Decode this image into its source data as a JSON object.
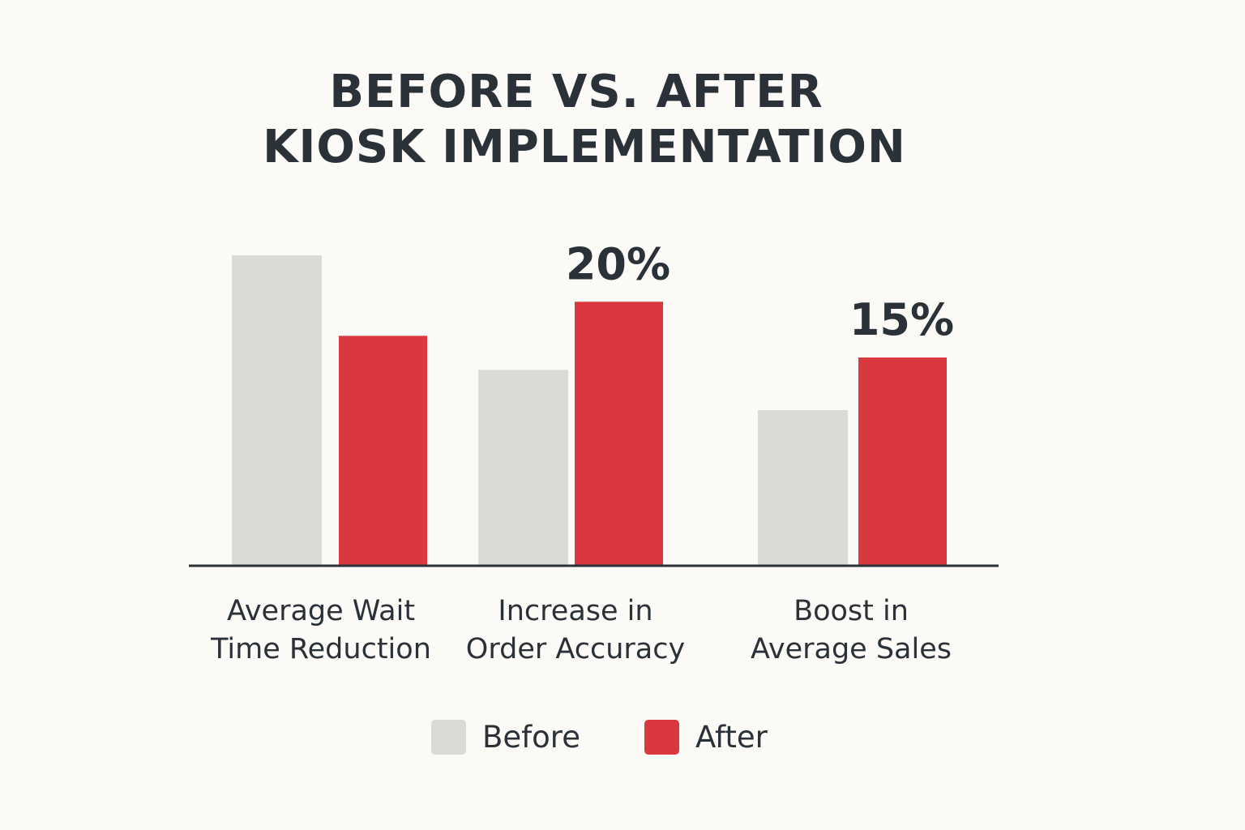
{
  "chart_data": {
    "type": "bar",
    "title": "BEFORE VS. AFTER KIOSK IMPLEMENTATION",
    "title_lines": [
      "BEFORE VS. AFTER",
      "KIOSK IMPLEMENTATION"
    ],
    "categories": [
      [
        "Average Wait",
        "Time Reduction"
      ],
      [
        "Increase in",
        "Order Accuracy"
      ],
      [
        "Boost in",
        "Average Sales"
      ]
    ],
    "series": [
      {
        "name": "Before",
        "color": "#dcdad6",
        "values": [
          100,
          63,
          50
        ]
      },
      {
        "name": "After",
        "color": "#d8383e",
        "values": [
          74,
          85,
          67
        ]
      }
    ],
    "data_labels": [
      {
        "category": 1,
        "series": 1,
        "text": "20%"
      },
      {
        "category": 2,
        "series": 1,
        "text": "15%"
      }
    ],
    "ylim": [
      0,
      100
    ],
    "xlabel": "",
    "ylabel": "",
    "grid": false,
    "legend_position": "bottom-center",
    "text_color": "#2b3138",
    "axis_color": "#2b3138"
  }
}
